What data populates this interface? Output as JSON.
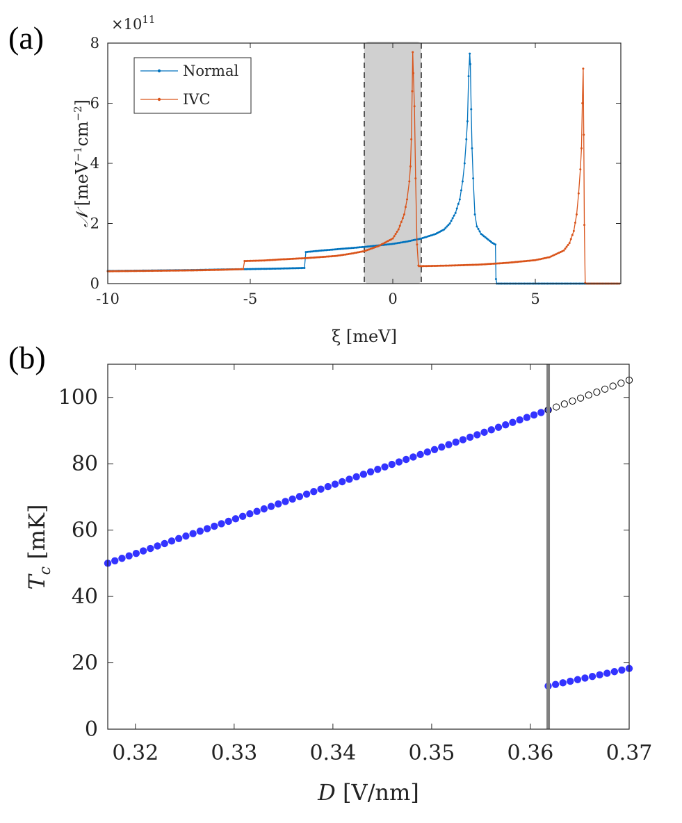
{
  "figure": {
    "panel_a_label": "(a)",
    "panel_b_label": "(b)"
  },
  "chart_data": [
    {
      "type": "line",
      "panel": "a",
      "title": "",
      "xlabel": "ξ [meV]",
      "ylabel": "𝒩 [meV⁻¹cm⁻²]",
      "ylabel_parts": {
        "symbol": "𝒩",
        "open": " [meV",
        "exp1": "−1",
        "mid": "cm",
        "exp2": "−2",
        "close": "]"
      },
      "y_scale_exponent_label": {
        "base": "×10",
        "exp": "11"
      },
      "xlim": [
        -10,
        8
      ],
      "ylim": [
        0,
        8
      ],
      "xticks": [
        -10,
        -5,
        0,
        5
      ],
      "xtick_labels": [
        "-10",
        "-5",
        "0",
        "5"
      ],
      "yticks": [
        0,
        2,
        4,
        6,
        8
      ],
      "ytick_labels": [
        "0",
        "2",
        "4",
        "6",
        "8"
      ],
      "legend_position": "top-left",
      "shaded_band": {
        "x_range": [
          -1,
          1
        ],
        "dashed_boundaries": true
      },
      "series": [
        {
          "name": "Normal",
          "color": "#0072BD",
          "points": [
            [
              -10,
              0.42
            ],
            [
              -9,
              0.43
            ],
            [
              -8,
              0.44
            ],
            [
              -7,
              0.45
            ],
            [
              -6,
              0.47
            ],
            [
              -5.2,
              0.48
            ],
            [
              -4,
              0.5
            ],
            [
              -3.1,
              0.52
            ],
            [
              -3.05,
              1.05
            ],
            [
              -2.5,
              1.1
            ],
            [
              -2,
              1.14
            ],
            [
              -1.5,
              1.18
            ],
            [
              -1,
              1.22
            ],
            [
              -0.5,
              1.27
            ],
            [
              0,
              1.32
            ],
            [
              0.5,
              1.4
            ],
            [
              1,
              1.5
            ],
            [
              1.5,
              1.65
            ],
            [
              1.8,
              1.8
            ],
            [
              2.0,
              2.0
            ],
            [
              2.2,
              2.35
            ],
            [
              2.35,
              2.8
            ],
            [
              2.45,
              3.4
            ],
            [
              2.52,
              4.0
            ],
            [
              2.58,
              4.8
            ],
            [
              2.62,
              5.4
            ],
            [
              2.66,
              6.9
            ],
            [
              2.7,
              7.65
            ],
            [
              2.72,
              7.3
            ],
            [
              2.75,
              5.8
            ],
            [
              2.78,
              4.5
            ],
            [
              2.82,
              3.5
            ],
            [
              2.88,
              2.3
            ],
            [
              2.95,
              1.9
            ],
            [
              3.1,
              1.65
            ],
            [
              3.3,
              1.5
            ],
            [
              3.5,
              1.35
            ],
            [
              3.6,
              1.3
            ],
            [
              3.62,
              0.15
            ],
            [
              3.65,
              0
            ],
            [
              5,
              0
            ],
            [
              6.5,
              0
            ],
            [
              8,
              0
            ]
          ]
        },
        {
          "name": "IVC",
          "color": "#D95319",
          "points": [
            [
              -10,
              0.41
            ],
            [
              -9,
              0.42
            ],
            [
              -8,
              0.43
            ],
            [
              -7,
              0.44
            ],
            [
              -6,
              0.46
            ],
            [
              -5.25,
              0.48
            ],
            [
              -5.2,
              0.75
            ],
            [
              -4.5,
              0.77
            ],
            [
              -4,
              0.8
            ],
            [
              -3,
              0.85
            ],
            [
              -2,
              0.92
            ],
            [
              -1.5,
              0.99
            ],
            [
              -1,
              1.08
            ],
            [
              -0.5,
              1.25
            ],
            [
              0,
              1.5
            ],
            [
              0.2,
              1.8
            ],
            [
              0.4,
              2.3
            ],
            [
              0.5,
              2.8
            ],
            [
              0.58,
              3.4
            ],
            [
              0.62,
              3.9
            ],
            [
              0.65,
              4.8
            ],
            [
              0.68,
              6.4
            ],
            [
              0.7,
              7.7
            ],
            [
              0.72,
              7.0
            ],
            [
              0.76,
              5.9
            ],
            [
              0.8,
              3.5
            ],
            [
              0.85,
              1.3
            ],
            [
              0.9,
              0.6
            ],
            [
              0.92,
              0.58
            ],
            [
              2,
              0.6
            ],
            [
              3,
              0.63
            ],
            [
              4,
              0.69
            ],
            [
              5,
              0.78
            ],
            [
              5.5,
              0.88
            ],
            [
              6,
              1.1
            ],
            [
              6.2,
              1.35
            ],
            [
              6.35,
              1.75
            ],
            [
              6.45,
              2.3
            ],
            [
              6.52,
              3.0
            ],
            [
              6.58,
              3.8
            ],
            [
              6.62,
              4.5
            ],
            [
              6.65,
              6.0
            ],
            [
              6.68,
              7.15
            ],
            [
              6.7,
              4.95
            ],
            [
              6.72,
              1.95
            ],
            [
              6.75,
              0.02
            ],
            [
              6.8,
              0
            ],
            [
              8,
              0
            ]
          ]
        }
      ]
    },
    {
      "type": "scatter",
      "panel": "b",
      "title": "",
      "xlabel": "D [V/nm]",
      "xlabel_parts": {
        "symbol": "D",
        "rest": " [V/nm]"
      },
      "ylabel": "Tc [mK]",
      "ylabel_parts": {
        "symbol": "T",
        "sub": "c",
        "rest": " [mK]"
      },
      "xlim": [
        0.3172,
        0.37
      ],
      "ylim": [
        0,
        110
      ],
      "xticks": [
        0.32,
        0.33,
        0.34,
        0.35,
        0.36,
        0.37
      ],
      "xtick_labels": [
        "0.32",
        "0.33",
        "0.34",
        "0.35",
        "0.36",
        "0.37"
      ],
      "yticks": [
        0,
        20,
        40,
        60,
        80,
        100
      ],
      "ytick_labels": [
        "0",
        "20",
        "40",
        "60",
        "80",
        "100"
      ],
      "vertical_line": {
        "x": 0.3618,
        "color": "#808080"
      },
      "series": [
        {
          "name": "filled-lower-branch",
          "style": "filled",
          "color": "#3333FF",
          "x_start": 0.3172,
          "x_end": 0.3618,
          "count": 63,
          "y_start": 50,
          "y_end": 96.2
        },
        {
          "name": "open-upper-branch",
          "style": "open",
          "color": "#000000",
          "x_start": 0.3618,
          "x_end": 0.37,
          "count": 11,
          "y_start": 96.2,
          "y_end": 105.2
        },
        {
          "name": "filled-jump-branch",
          "style": "filled",
          "color": "#3333FF",
          "x_start": 0.3618,
          "x_end": 0.37,
          "count": 12,
          "y_start": 13,
          "y_end": 18.3
        }
      ]
    }
  ]
}
